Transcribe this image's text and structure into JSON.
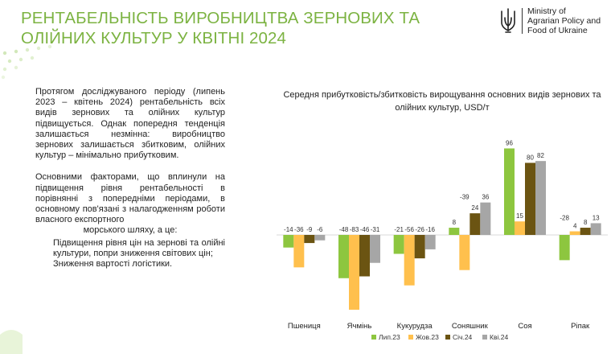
{
  "header": {
    "title": "РЕНТАБЕЛЬНІСТЬ ВИРОБНИЦТВА ЗЕРНОВИХ ТА ОЛІЙНИХ КУЛЬТУР У КВІТНІ 2024",
    "ministry": "Ministry of\nAgrarian Policy and\nFood of Ukraine"
  },
  "text": {
    "para1": "Протягом досліджуваного періоду (липень 2023 – квітень 2024) рентабельність всіх видів зернових та олійних культур підвищується. Однак попередня тенденція залишається незмінна: виробництво зернових залишається збитковим, олійних культур – мінімально прибутковим.",
    "para2": "Основними факторами, що вплинули на підвищення рівня рентабельності в порівнянні з попередніми періодами, в основному пов'язані з налагодженням роботи власного експортного",
    "para2_tail": "морського шляху, а це:",
    "bullets": [
      "Підвищення рівня цін на зернові та олійні культури, попри зниження світових цін;",
      "Зниження вартості логістики."
    ]
  },
  "colors": {
    "title": "#7cb342",
    "series": [
      "#8dc63f",
      "#ffc04d",
      "#6b5412",
      "#a6a6a6"
    ]
  },
  "chart_data": {
    "type": "bar",
    "title": "Середня прибутковість/збитковість вирощування основних видів зернових та олійних культур, USD/т",
    "categories": [
      "Пшениця",
      "Ячмінь",
      "Кукурудза",
      "Соняшник",
      "Соя",
      "Ріпак"
    ],
    "series": [
      {
        "name": "Лип.23",
        "values": [
          -14,
          -48,
          -21,
          8,
          96,
          -28
        ]
      },
      {
        "name": "Жов.23",
        "values": [
          -36,
          -83,
          -56,
          -39,
          15,
          4
        ]
      },
      {
        "name": "Січ.24",
        "values": [
          -9,
          -46,
          -26,
          24,
          80,
          8
        ]
      },
      {
        "name": "Кві.24",
        "values": [
          -6,
          -31,
          -16,
          36,
          82,
          13
        ]
      }
    ],
    "ylim": [
      -90,
      100
    ],
    "grid": false,
    "legend": "bottom"
  }
}
